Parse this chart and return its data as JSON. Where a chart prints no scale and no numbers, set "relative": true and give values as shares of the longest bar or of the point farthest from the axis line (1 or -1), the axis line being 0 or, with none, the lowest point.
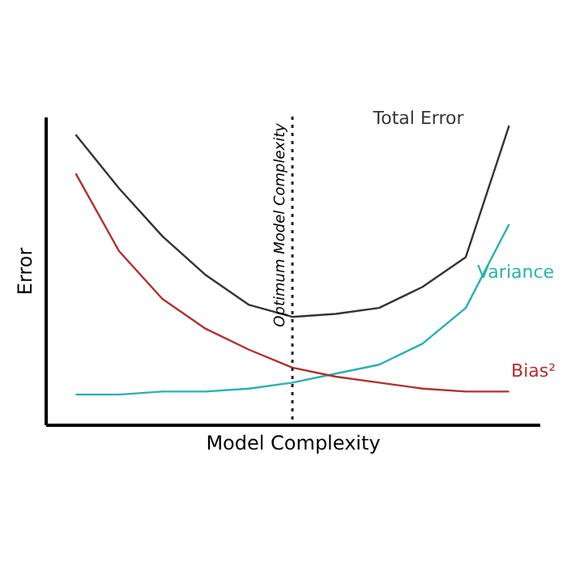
{
  "chart_data": {
    "type": "line",
    "relative": true,
    "xlabel": "Model Complexity",
    "ylabel": "Error",
    "categories": [
      null,
      null,
      null,
      null,
      null,
      null,
      null,
      null,
      null,
      null,
      null
    ],
    "marker": "none",
    "line_style": "solid",
    "series": [
      {
        "name": "Total Error",
        "color": "#333333",
        "values": [
          0.97,
          0.79,
          0.63,
          0.5,
          0.4,
          0.36,
          0.37,
          0.39,
          0.46,
          0.56,
          1.0
        ]
      },
      {
        "name": "Variance",
        "color": "#2ab0b0",
        "values": [
          0.1,
          0.1,
          0.11,
          0.11,
          0.12,
          0.14,
          0.17,
          0.2,
          0.27,
          0.39,
          0.67
        ]
      },
      {
        "name": "Bias²",
        "color": "#b03030",
        "values": [
          0.84,
          0.58,
          0.42,
          0.32,
          0.25,
          0.19,
          0.16,
          0.14,
          0.12,
          0.11,
          0.11
        ]
      }
    ],
    "annotations": [
      "Optimum Model Complexity"
    ]
  }
}
